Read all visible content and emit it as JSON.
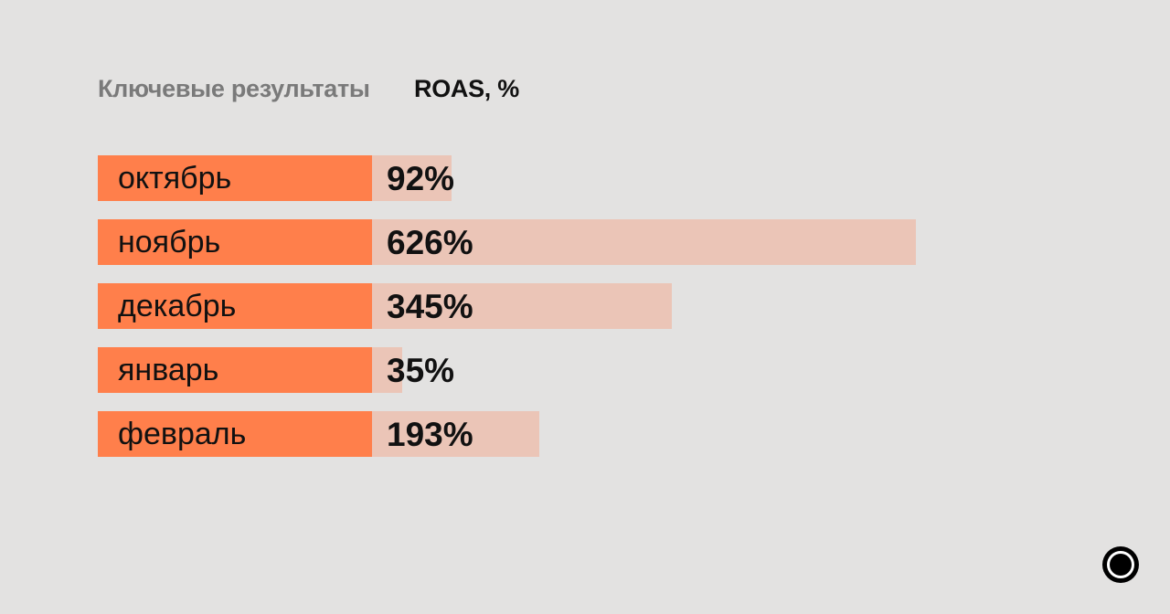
{
  "header": {
    "title": "Ключевые результаты",
    "metric": "ROAS, %"
  },
  "chart_data": {
    "type": "bar",
    "orientation": "horizontal",
    "title": "",
    "xlabel": "",
    "ylabel": "",
    "categories": [
      "октябрь",
      "ноябрь",
      "декабрь",
      "январь",
      "февраль"
    ],
    "values": [
      92,
      626,
      345,
      35,
      193
    ],
    "value_labels": [
      "92%",
      "626%",
      "345%",
      "35%",
      "193%"
    ],
    "xlim": [
      0,
      626
    ],
    "grid": false,
    "legend": "none",
    "colors": {
      "label_box": "#ff7f4b",
      "bar": "#ebc5b7"
    }
  },
  "logo": {
    "icon": "ring-logo-icon"
  }
}
